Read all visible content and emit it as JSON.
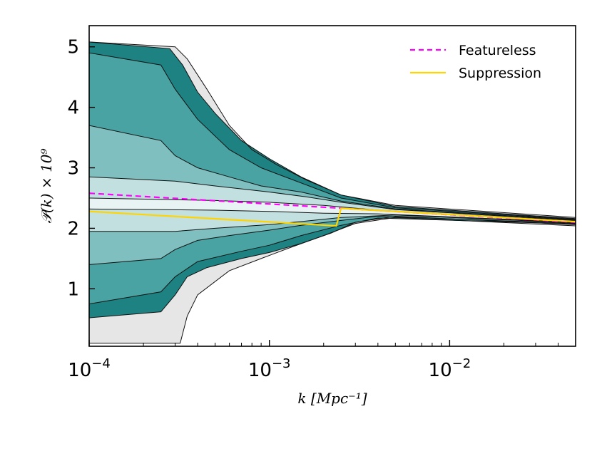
{
  "chart_data": {
    "type": "area",
    "title": "",
    "xlabel": "k [Mpc⁻¹]",
    "ylabel": "𝒫(k) × 10⁹",
    "xscale": "log",
    "xlim": [
      0.0001,
      0.05
    ],
    "ylim": [
      0.05,
      5.35
    ],
    "x_ticks": [
      {
        "value": 0.0001,
        "base": "10",
        "exp": "−4"
      },
      {
        "value": 0.001,
        "base": "10",
        "exp": "−3"
      },
      {
        "value": 0.01,
        "base": "10",
        "exp": "−2"
      }
    ],
    "y_ticks": [
      {
        "value": 1,
        "label": "1"
      },
      {
        "value": 2,
        "label": "2"
      },
      {
        "value": 3,
        "label": "3"
      },
      {
        "value": 4,
        "label": "4"
      },
      {
        "value": 5,
        "label": "5"
      }
    ],
    "legend_position": "top-right",
    "colors": {
      "band_outer_gray": "#e6e6e6",
      "band_gray": "#cccccc",
      "band_3": "#1e8282",
      "band_2": "#4aa3a3",
      "band_1": "#7fbfbf",
      "band_0": "#c2e0e0",
      "core": "#e8f3f3",
      "featureless": "#ff00ff",
      "suppression": "#ffd400"
    },
    "bands": [
      {
        "name": "outer-gray-band",
        "color_key": "band_outer_gray",
        "upper": [
          [
            0.0001,
            5.08
          ],
          [
            0.0003,
            5.0
          ],
          [
            0.00035,
            4.8
          ],
          [
            0.00045,
            4.3
          ],
          [
            0.0006,
            3.7
          ],
          [
            0.0008,
            3.3
          ],
          [
            0.0011,
            3.05
          ],
          [
            0.0016,
            2.8
          ],
          [
            0.0025,
            2.55
          ],
          [
            0.005,
            2.38
          ],
          [
            0.05,
            2.18
          ]
        ],
        "lower": [
          [
            0.0001,
            0.1
          ],
          [
            0.00032,
            0.1
          ],
          [
            0.00035,
            0.55
          ],
          [
            0.0004,
            0.9
          ],
          [
            0.0006,
            1.3
          ],
          [
            0.0009,
            1.5
          ],
          [
            0.0013,
            1.68
          ],
          [
            0.002,
            1.88
          ],
          [
            0.003,
            2.08
          ],
          [
            0.005,
            2.18
          ],
          [
            0.05,
            2.04
          ]
        ]
      },
      {
        "name": "teal-band-3",
        "color_key": "band_3",
        "upper": [
          [
            0.0001,
            5.08
          ],
          [
            0.00028,
            4.97
          ],
          [
            0.00033,
            4.7
          ],
          [
            0.0004,
            4.25
          ],
          [
            0.0005,
            3.9
          ],
          [
            0.0007,
            3.45
          ],
          [
            0.001,
            3.15
          ],
          [
            0.0015,
            2.85
          ],
          [
            0.0025,
            2.55
          ],
          [
            0.005,
            2.36
          ],
          [
            0.05,
            2.16
          ]
        ],
        "lower": [
          [
            0.0001,
            0.52
          ],
          [
            0.00025,
            0.62
          ],
          [
            0.0003,
            0.9
          ],
          [
            0.00035,
            1.2
          ],
          [
            0.00045,
            1.35
          ],
          [
            0.0007,
            1.5
          ],
          [
            0.001,
            1.6
          ],
          [
            0.0015,
            1.75
          ],
          [
            0.0022,
            1.92
          ],
          [
            0.003,
            2.1
          ],
          [
            0.005,
            2.2
          ],
          [
            0.05,
            2.06
          ]
        ]
      },
      {
        "name": "teal-band-2",
        "color_key": "band_2",
        "upper": [
          [
            0.0001,
            4.9
          ],
          [
            0.00025,
            4.7
          ],
          [
            0.0003,
            4.3
          ],
          [
            0.0004,
            3.8
          ],
          [
            0.0006,
            3.3
          ],
          [
            0.0009,
            3.0
          ],
          [
            0.0015,
            2.75
          ],
          [
            0.0025,
            2.5
          ],
          [
            0.005,
            2.34
          ],
          [
            0.05,
            2.15
          ]
        ],
        "lower": [
          [
            0.0001,
            0.75
          ],
          [
            0.00025,
            0.95
          ],
          [
            0.0003,
            1.2
          ],
          [
            0.0004,
            1.45
          ],
          [
            0.0007,
            1.62
          ],
          [
            0.001,
            1.72
          ],
          [
            0.0015,
            1.88
          ],
          [
            0.0025,
            2.05
          ],
          [
            0.004,
            2.17
          ],
          [
            0.05,
            2.07
          ]
        ]
      },
      {
        "name": "teal-band-1",
        "color_key": "band_1",
        "upper": [
          [
            0.0001,
            3.7
          ],
          [
            0.00025,
            3.45
          ],
          [
            0.0003,
            3.2
          ],
          [
            0.0004,
            3.0
          ],
          [
            0.0006,
            2.85
          ],
          [
            0.0009,
            2.7
          ],
          [
            0.0015,
            2.6
          ],
          [
            0.0025,
            2.45
          ],
          [
            0.005,
            2.32
          ],
          [
            0.05,
            2.14
          ]
        ],
        "lower": [
          [
            0.0001,
            1.4
          ],
          [
            0.00025,
            1.5
          ],
          [
            0.0003,
            1.65
          ],
          [
            0.0004,
            1.8
          ],
          [
            0.0006,
            1.88
          ],
          [
            0.001,
            1.97
          ],
          [
            0.0015,
            2.05
          ],
          [
            0.0025,
            2.13
          ],
          [
            0.004,
            2.2
          ],
          [
            0.05,
            2.08
          ]
        ]
      },
      {
        "name": "teal-band-0",
        "color_key": "band_0",
        "upper": [
          [
            0.0001,
            2.85
          ],
          [
            0.0003,
            2.78
          ],
          [
            0.0005,
            2.7
          ],
          [
            0.001,
            2.6
          ],
          [
            0.0016,
            2.52
          ],
          [
            0.0025,
            2.43
          ],
          [
            0.005,
            2.31
          ],
          [
            0.05,
            2.13
          ]
        ],
        "lower": [
          [
            0.0001,
            1.95
          ],
          [
            0.0003,
            1.95
          ],
          [
            0.0005,
            2.0
          ],
          [
            0.001,
            2.06
          ],
          [
            0.0016,
            2.12
          ],
          [
            0.0025,
            2.18
          ],
          [
            0.005,
            2.22
          ],
          [
            0.05,
            2.09
          ]
        ]
      },
      {
        "name": "core-band",
        "color_key": "core",
        "upper": [
          [
            0.0001,
            2.5
          ],
          [
            0.0005,
            2.46
          ],
          [
            0.001,
            2.43
          ],
          [
            0.002,
            2.38
          ],
          [
            0.004,
            2.3
          ],
          [
            0.05,
            2.12
          ]
        ],
        "lower": [
          [
            0.0001,
            2.32
          ],
          [
            0.0005,
            2.3
          ],
          [
            0.001,
            2.28
          ],
          [
            0.002,
            2.25
          ],
          [
            0.004,
            2.24
          ],
          [
            0.05,
            2.1
          ]
        ]
      }
    ],
    "series": [
      {
        "name": "Featureless",
        "style": "dashed",
        "color_key": "featureless",
        "points": [
          [
            0.0001,
            2.58
          ],
          [
            0.05,
            2.1
          ]
        ]
      },
      {
        "name": "Suppression",
        "style": "solid",
        "color_key": "suppression",
        "points": [
          [
            0.0001,
            2.28
          ],
          [
            0.00235,
            2.04
          ],
          [
            0.0025,
            2.33
          ],
          [
            0.05,
            2.11
          ]
        ]
      }
    ]
  }
}
